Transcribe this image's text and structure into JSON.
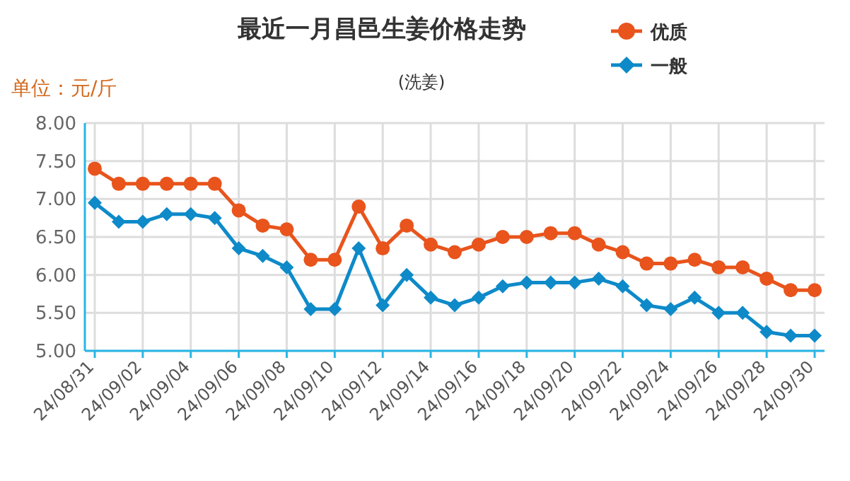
{
  "chart_data": {
    "type": "line",
    "title": "最近一月昌邑生姜价格走势",
    "subtitle": "(洗姜)",
    "ylabel": "单位：元/斤",
    "categories": [
      "24/08/31",
      null,
      "24/09/02",
      null,
      "24/09/04",
      null,
      "24/09/06",
      null,
      "24/09/08",
      null,
      "24/09/10",
      null,
      "24/09/12",
      null,
      "24/09/14",
      null,
      "24/09/16",
      null,
      "24/09/18",
      null,
      "24/09/20",
      null,
      "24/09/22",
      null,
      "24/09/24",
      null,
      "24/09/26",
      null,
      "24/09/28",
      null,
      "24/09/30"
    ],
    "series": [
      {
        "name": "优质",
        "color": "#e8541c",
        "marker": "circle",
        "values": [
          7.4,
          7.2,
          7.2,
          7.2,
          7.2,
          7.2,
          6.85,
          6.65,
          6.6,
          6.2,
          6.2,
          6.9,
          6.35,
          6.65,
          6.4,
          6.3,
          6.4,
          6.5,
          6.5,
          6.55,
          6.55,
          6.4,
          6.3,
          6.15,
          6.15,
          6.2,
          6.1,
          6.1,
          5.95,
          5.8,
          5.8
        ]
      },
      {
        "name": "一般",
        "color": "#0e8ac8",
        "marker": "diamond",
        "values": [
          6.95,
          6.7,
          6.7,
          6.8,
          6.8,
          6.75,
          6.35,
          6.25,
          6.1,
          5.55,
          5.55,
          6.35,
          5.6,
          6.0,
          5.7,
          5.6,
          5.7,
          5.85,
          5.9,
          5.9,
          5.9,
          5.95,
          5.85,
          5.6,
          5.55,
          5.7,
          5.5,
          5.5,
          5.25,
          5.2,
          5.2
        ]
      }
    ],
    "ylim": [
      5,
      8
    ],
    "yticks": [
      {
        "value": 5,
        "label": "5.00"
      },
      {
        "value": 5.5,
        "label": "5.50"
      },
      {
        "value": 6,
        "label": "6.00"
      },
      {
        "value": 6.5,
        "label": "6.50"
      },
      {
        "value": 7,
        "label": "7.00"
      },
      {
        "value": 7.5,
        "label": "7.50"
      },
      {
        "value": 8,
        "label": "8.00"
      }
    ],
    "grid": true,
    "legend": "top right"
  }
}
